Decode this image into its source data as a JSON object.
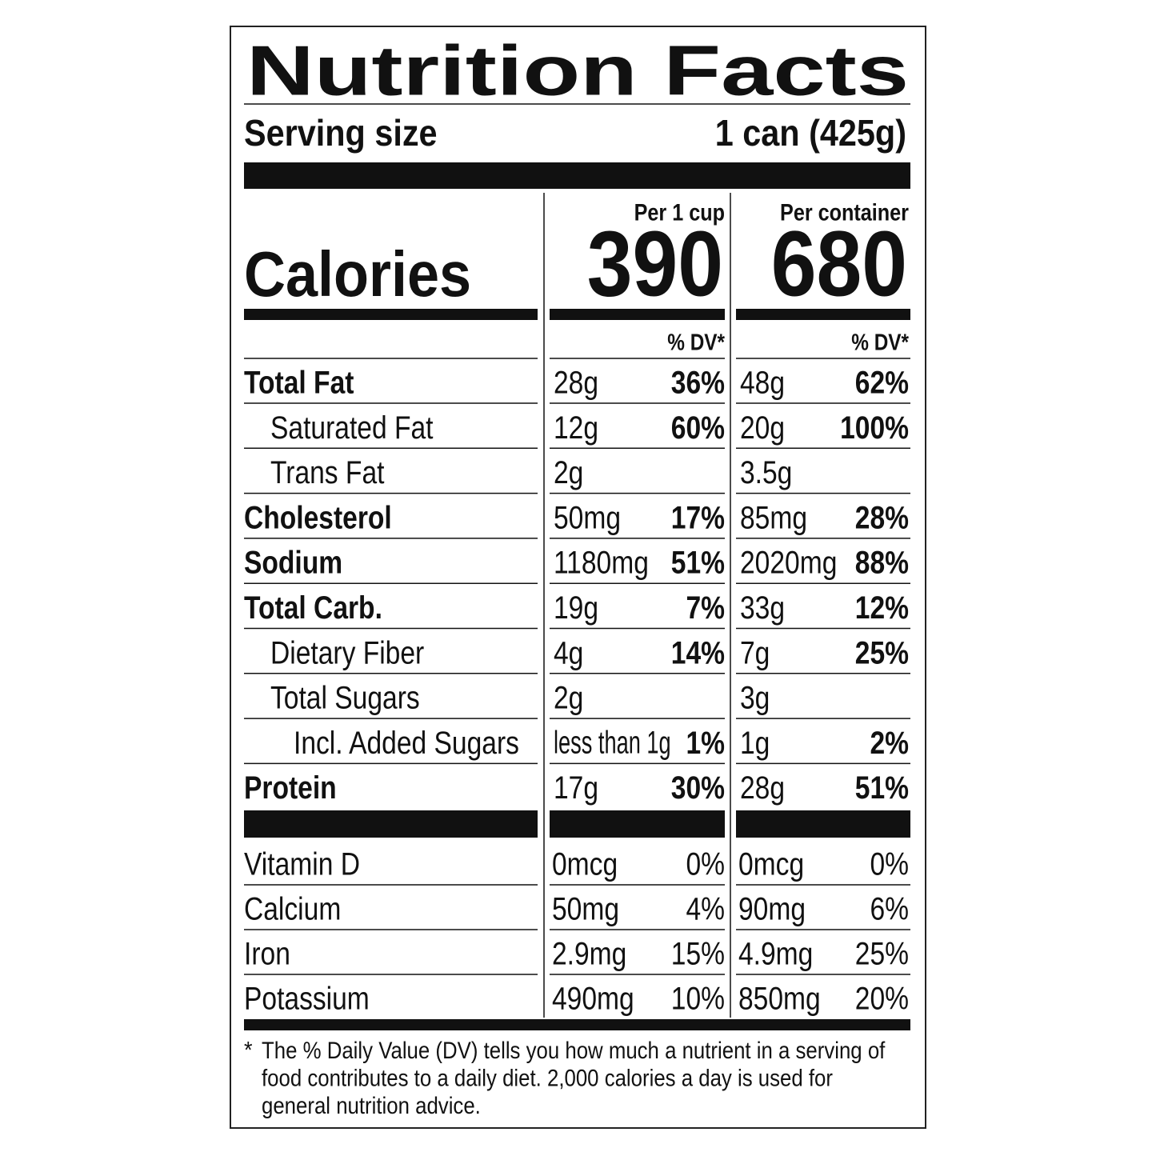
{
  "header": {
    "title": "Nutrition Facts",
    "serving_size_label": "Serving size",
    "serving_size_value": "1 can (425g)"
  },
  "calories_label": "Calories",
  "columns": [
    {
      "heading": "Per 1 cup",
      "calories": "390",
      "dv_heading": "% DV*"
    },
    {
      "heading": "Per container",
      "calories": "680",
      "dv_heading": "% DV*"
    }
  ],
  "nutrients": [
    {
      "name": "Total Fat",
      "bold": true,
      "level": 0,
      "values": [
        {
          "amount": "28g",
          "dv": "36%"
        },
        {
          "amount": "48g",
          "dv": "62%"
        }
      ]
    },
    {
      "name": "Saturated Fat",
      "bold": false,
      "level": 1,
      "values": [
        {
          "amount": "12g",
          "dv": "60%"
        },
        {
          "amount": "20g",
          "dv": "100%"
        }
      ]
    },
    {
      "name": "Trans Fat",
      "bold": false,
      "level": 1,
      "values": [
        {
          "amount": "2g"
        },
        {
          "amount": "3.5g"
        }
      ]
    },
    {
      "name": "Cholesterol",
      "bold": true,
      "level": 0,
      "values": [
        {
          "amount": "50mg",
          "dv": "17%"
        },
        {
          "amount": "85mg",
          "dv": "28%"
        }
      ]
    },
    {
      "name": "Sodium",
      "bold": true,
      "level": 0,
      "values": [
        {
          "amount": "1180mg",
          "dv": "51%"
        },
        {
          "amount": "2020mg",
          "dv": "88%"
        }
      ]
    },
    {
      "name": "Total Carb.",
      "bold": true,
      "level": 0,
      "values": [
        {
          "amount": "19g",
          "dv": "7%"
        },
        {
          "amount": "33g",
          "dv": "12%"
        }
      ]
    },
    {
      "name": "Dietary Fiber",
      "bold": false,
      "level": 1,
      "values": [
        {
          "amount": "4g",
          "dv": "14%"
        },
        {
          "amount": "7g",
          "dv": "25%"
        }
      ]
    },
    {
      "name": "Total Sugars",
      "bold": false,
      "level": 1,
      "values": [
        {
          "amount": "2g"
        },
        {
          "amount": "3g"
        }
      ]
    },
    {
      "name": "Incl. Added Sugars",
      "bold": false,
      "level": 2,
      "values": [
        {
          "amount": "less than 1g",
          "dv": "1%"
        },
        {
          "amount": "1g",
          "dv": "2%"
        }
      ]
    },
    {
      "name": "Protein",
      "bold": true,
      "level": 0,
      "values": [
        {
          "amount": "17g",
          "dv": "30%"
        },
        {
          "amount": "28g",
          "dv": "51%"
        }
      ]
    }
  ],
  "vitamins": [
    {
      "name": "Vitamin D",
      "values": [
        {
          "amount": "0mcg",
          "dv": "0%"
        },
        {
          "amount": "0mcg",
          "dv": "0%"
        }
      ]
    },
    {
      "name": "Calcium",
      "values": [
        {
          "amount": "50mg",
          "dv": "4%"
        },
        {
          "amount": "90mg",
          "dv": "6%"
        }
      ]
    },
    {
      "name": "Iron",
      "values": [
        {
          "amount": "2.9mg",
          "dv": "15%"
        },
        {
          "amount": "4.9mg",
          "dv": "25%"
        }
      ]
    },
    {
      "name": "Potassium",
      "values": [
        {
          "amount": "490mg",
          "dv": "10%"
        },
        {
          "amount": "850mg",
          "dv": "20%"
        }
      ]
    }
  ],
  "footnote": {
    "mark": "*",
    "lines": [
      "The % Daily Value (DV) tells you how much a nutrient in a serving of",
      "food contributes to a daily diet. 2,000 calories a day is used for",
      "general nutrition advice."
    ]
  }
}
